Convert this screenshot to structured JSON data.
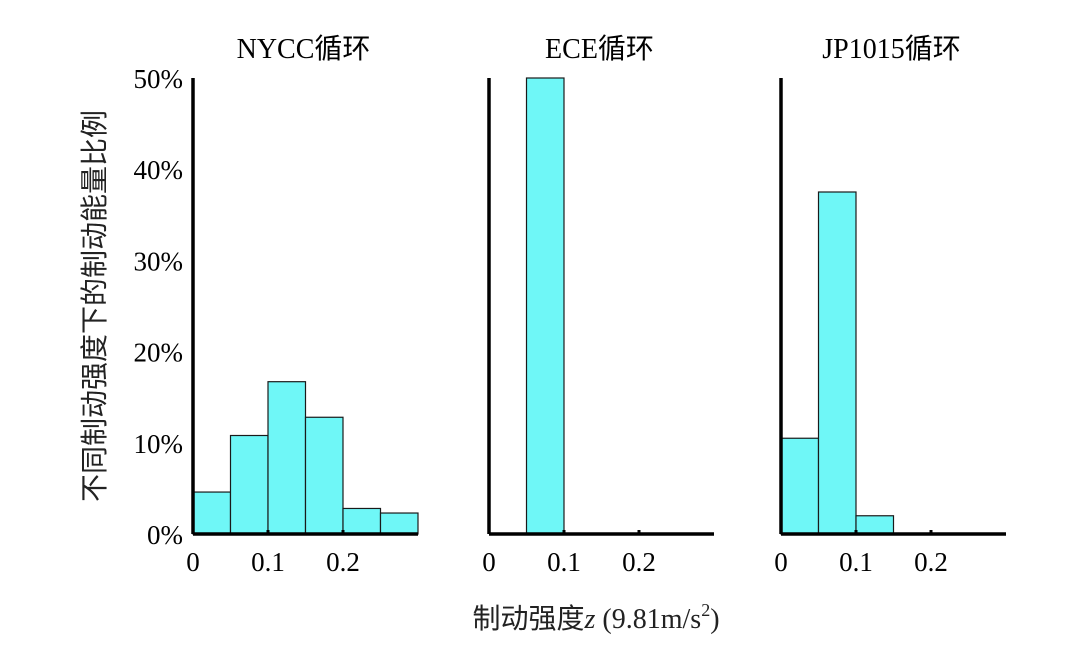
{
  "chart_data": {
    "type": "bar",
    "ylabel": "不同制动强度下的制动能量比例",
    "xlabel": {
      "main": "制动强度",
      "var": "z",
      "unit_prefix": " (9.81m/s",
      "unit_sup": "2",
      "unit_suffix": ")"
    },
    "ylim": [
      0,
      50
    ],
    "xlim": [
      0,
      0.3
    ],
    "y_ticks": [
      {
        "value": 0,
        "label": "0%"
      },
      {
        "value": 10,
        "label": "10%"
      },
      {
        "value": 20,
        "label": "20%"
      },
      {
        "value": 30,
        "label": "30%"
      },
      {
        "value": 40,
        "label": "40%"
      },
      {
        "value": 50,
        "label": "50%"
      }
    ],
    "x_ticks": [
      {
        "value": 0,
        "label": "0"
      },
      {
        "value": 0.1,
        "label": "0.1"
      },
      {
        "value": 0.2,
        "label": "0.2"
      }
    ],
    "bin_width": 0.05,
    "grid": false,
    "bar_color": "#6ff7f7",
    "panels": [
      {
        "title": "NYCC循环",
        "bins": [
          0,
          0.05,
          0.1,
          0.15,
          0.2,
          0.25
        ],
        "values": [
          4.6,
          10.8,
          16.7,
          12.8,
          2.8,
          2.3
        ]
      },
      {
        "title": "ECE循环",
        "bins": [
          0,
          0.05,
          0.1,
          0.15,
          0.2,
          0.25
        ],
        "values": [
          0,
          50,
          0,
          0,
          0,
          0
        ]
      },
      {
        "title": "JP1015循环",
        "bins": [
          0,
          0.05,
          0.1,
          0.15,
          0.2,
          0.25
        ],
        "values": [
          10.5,
          37.5,
          2.0,
          0,
          0,
          0
        ]
      }
    ]
  }
}
